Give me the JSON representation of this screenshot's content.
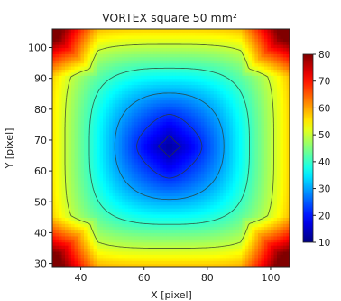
{
  "chart_data": {
    "type": "heatmap",
    "title": "VORTEX square 50 mm²",
    "xlabel": "X [pixel]",
    "ylabel": "Y [pixel]",
    "xlim": [
      31,
      106
    ],
    "ylim": [
      29,
      106
    ],
    "x_ticks": [
      40,
      60,
      80,
      100
    ],
    "y_ticks": [
      30,
      40,
      50,
      60,
      70,
      80,
      90,
      100
    ],
    "colorbar": {
      "colormap": "jet",
      "range": [
        10,
        80
      ],
      "ticks": [
        10,
        20,
        30,
        40,
        50,
        60,
        70,
        80
      ]
    },
    "center": [
      68,
      68
    ],
    "field": {
      "description_model": "superellipse distance from center; value rises from center minimum to corner maximum",
      "center_value": 12,
      "edge_value": 56,
      "corner_value": 80
    },
    "contour_levels": [
      15,
      22,
      30,
      40,
      50
    ]
  }
}
